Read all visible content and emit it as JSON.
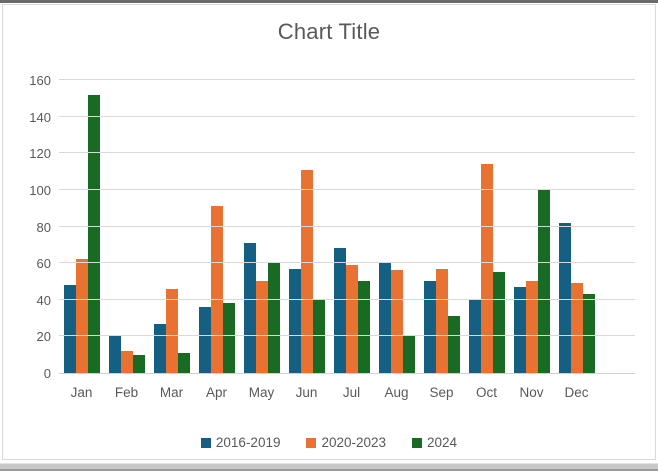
{
  "colors": {
    "series_blue": "#156082",
    "series_orange": "#E97132",
    "series_green": "#196B24",
    "text_gray": "#595959",
    "gridline": "#D9D9D9",
    "axis_line": "#D0D0D0"
  },
  "chart_data": {
    "type": "bar",
    "title": "Chart Title",
    "xlabel": "",
    "ylabel": "",
    "categories": [
      "Jan",
      "Feb",
      "Mar",
      "Apr",
      "May",
      "Jun",
      "Jul",
      "Aug",
      "Sep",
      "Oct",
      "Nov",
      "Dec"
    ],
    "series": [
      {
        "name": "2016-2019",
        "color": "#156082",
        "values": [
          48,
          20,
          27,
          36,
          71,
          57,
          68,
          60,
          50,
          40,
          47,
          82
        ]
      },
      {
        "name": "2020-2023",
        "color": "#E97132",
        "values": [
          62,
          12,
          46,
          91,
          50,
          111,
          59,
          56,
          57,
          114,
          50,
          49
        ]
      },
      {
        "name": "2024",
        "color": "#196B24",
        "values": [
          152,
          10,
          11,
          38,
          60,
          40,
          50,
          20,
          31,
          55,
          100,
          43
        ]
      }
    ],
    "ylim": [
      0,
      160
    ],
    "ytick_step": 20,
    "yticks": [
      0,
      20,
      40,
      60,
      80,
      100,
      120,
      140,
      160
    ],
    "grid": true,
    "legend_position": "bottom"
  }
}
